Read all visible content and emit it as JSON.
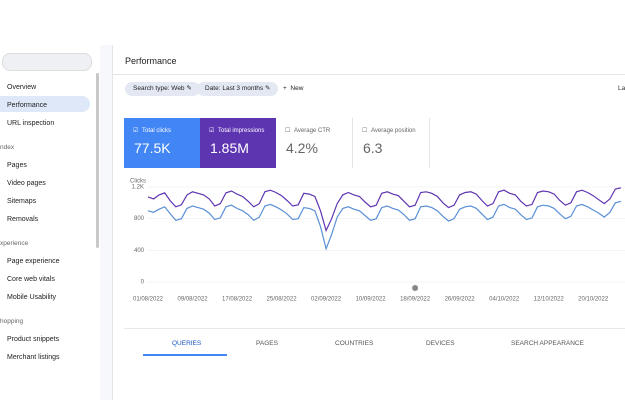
{
  "sidebar": {
    "items": [
      "Overview",
      "Performance",
      "URL inspection"
    ],
    "sections": [
      {
        "title": "ndex",
        "items": [
          "Pages",
          "Video pages",
          "Sitemaps",
          "Removals"
        ]
      },
      {
        "title": "xperience",
        "items": [
          "Page experience",
          "Core web vitals",
          "Mobile Usability"
        ]
      },
      {
        "title": "hopping",
        "items": [
          "Product snippets",
          "Merchant listings"
        ]
      }
    ]
  },
  "header": {
    "title": "Performance"
  },
  "filters": [
    "Search type: Web",
    "Date: Last 3 months",
    "New",
    "La"
  ],
  "metrics": [
    {
      "label": "Total clicks",
      "value": "77.5K"
    },
    {
      "label": "Total impressions",
      "value": "1.85M"
    },
    {
      "label": "Average CTR",
      "value": "4.2%"
    },
    {
      "label": "Average position",
      "value": "6.3"
    }
  ],
  "chart_data": {
    "type": "line",
    "y_label": "Clicks",
    "ylim": [
      0,
      1200
    ],
    "yticks": [
      0,
      400,
      800,
      {
        "value": 1200,
        "label": "1.2K"
      }
    ],
    "y2lim": [
      0,
      24000
    ],
    "xlim": [
      0,
      85
    ],
    "xticks": [
      {
        "value": 0,
        "label": "01/08/2022"
      },
      {
        "value": 8,
        "label": "09/08/2022"
      },
      {
        "value": 16,
        "label": "17/08/2022"
      },
      {
        "value": 24,
        "label": "25/08/2022"
      },
      {
        "value": 32,
        "label": "02/09/2022"
      },
      {
        "value": 40,
        "label": "10/09/2022"
      },
      {
        "value": 48,
        "label": "18/09/2022"
      },
      {
        "value": 56,
        "label": "26/09/2022"
      },
      {
        "value": 64,
        "label": "04/10/2022"
      },
      {
        "value": 72,
        "label": "12/10/2022"
      },
      {
        "value": 80,
        "label": "20/10/2022"
      }
    ],
    "series": [
      {
        "name": "Total impressions",
        "color": "#5e35b1",
        "axis": "y2",
        "values": [
          21500,
          21000,
          22000,
          22500,
          20500,
          19000,
          19500,
          22000,
          22800,
          22400,
          22000,
          21000,
          19200,
          19800,
          22500,
          23000,
          22200,
          21600,
          20400,
          19000,
          19800,
          22800,
          23200,
          22600,
          21800,
          20600,
          19200,
          19500,
          22400,
          22200,
          21600,
          18000,
          13000,
          16000,
          19800,
          22000,
          22600,
          22000,
          21600,
          20200,
          19000,
          19400,
          22400,
          22800,
          22200,
          21800,
          20400,
          19000,
          19400,
          22600,
          22800,
          22400,
          21600,
          20000,
          18800,
          19400,
          22000,
          22600,
          22800,
          22200,
          20600,
          19200,
          19800,
          22800,
          23200,
          22400,
          22000,
          20400,
          19200,
          19600,
          22600,
          23000,
          22800,
          22200,
          20600,
          19400,
          20000,
          22800,
          23200,
          22600,
          21800,
          20800,
          19800,
          21000,
          23500,
          23800
        ]
      },
      {
        "name": "Total clicks",
        "color": "#5a8fd6",
        "values": [
          900,
          880,
          920,
          950,
          860,
          780,
          800,
          930,
          960,
          940,
          920,
          870,
          790,
          810,
          950,
          970,
          930,
          900,
          850,
          780,
          820,
          960,
          980,
          950,
          910,
          860,
          790,
          800,
          940,
          930,
          900,
          700,
          420,
          600,
          820,
          930,
          950,
          920,
          900,
          840,
          780,
          800,
          940,
          960,
          930,
          910,
          850,
          780,
          800,
          950,
          960,
          940,
          900,
          830,
          770,
          800,
          920,
          950,
          960,
          930,
          860,
          790,
          820,
          960,
          980,
          940,
          920,
          850,
          790,
          810,
          950,
          970,
          960,
          930,
          860,
          800,
          830,
          960,
          980,
          950,
          910,
          870,
          820,
          880,
          1000,
          1020
        ]
      }
    ]
  },
  "tabs": [
    "QUERIES",
    "PAGES",
    "COUNTRIES",
    "DEVICES",
    "SEARCH APPEARANCE"
  ]
}
